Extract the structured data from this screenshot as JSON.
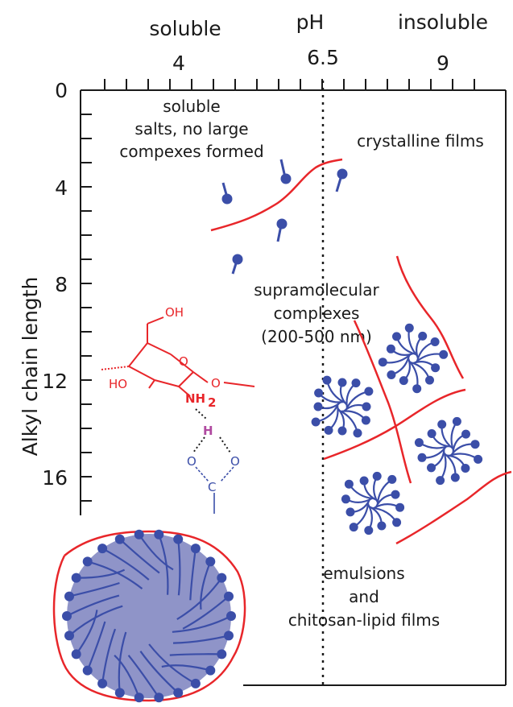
{
  "colors": {
    "chitosan": "#e8262a",
    "lipid": "#3b4ea8",
    "core": "#8f94c8",
    "hbond": "#b04aa0",
    "axis": "#1a1a1a"
  },
  "axis_top": {
    "left_label": "soluble",
    "title": "pH",
    "right_label": "insoluble",
    "ticks": [
      {
        "value": 4,
        "label": "4"
      },
      {
        "value": 6.5,
        "label": "6.5"
      },
      {
        "value": 9,
        "label": "9"
      }
    ]
  },
  "axis_left": {
    "title": "Alkyl chain length",
    "ticks": [
      {
        "value": 0,
        "label": "0"
      },
      {
        "value": 4,
        "label": "4"
      },
      {
        "value": 8,
        "label": "8"
      },
      {
        "value": 12,
        "label": "12"
      },
      {
        "value": 16,
        "label": "16"
      }
    ]
  },
  "regions": {
    "soluble": [
      "soluble",
      "salts, no large",
      "compexes formed"
    ],
    "crystalline": "crystalline films",
    "supramolecular": [
      "supramolecular",
      "complexes",
      "(200-500 nm)"
    ],
    "emulsions": [
      "emulsions",
      "and",
      "chitosan-lipid films"
    ]
  },
  "chemistry": {
    "oh_top": "OH",
    "ho_left": "HO",
    "ring_o": "O",
    "amine": "NH",
    "amine_sub": "2",
    "hydrogen": "H",
    "carboxyl_o_left": "O",
    "carboxyl_o_right": "O",
    "carbon": "C"
  },
  "icons": [
    "lipid-molecule-icon",
    "chitosan-chain-icon",
    "micelle-icon",
    "emulsion-droplet-icon"
  ]
}
